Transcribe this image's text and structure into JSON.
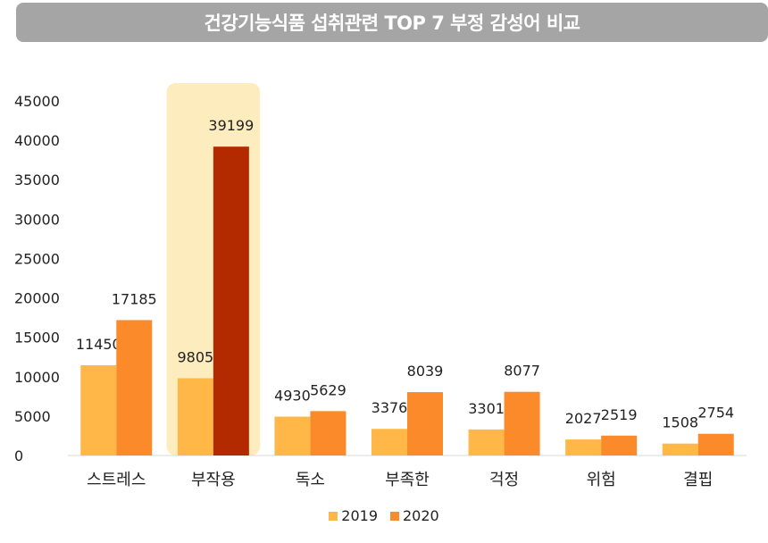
{
  "title": "건강기능식품 섭취관련 TOP 7 부정 감성어 비교",
  "chart_data": {
    "type": "bar",
    "categories": [
      "스트레스",
      "부작용",
      "독소",
      "부족한",
      "걱정",
      "위험",
      "결핍"
    ],
    "series": [
      {
        "name": "2019",
        "values": [
          11450,
          9805,
          4930,
          3376,
          3301,
          2027,
          1508
        ],
        "color": "#ffb847"
      },
      {
        "name": "2020",
        "values": [
          17185,
          39199,
          5629,
          8039,
          8077,
          2519,
          2754
        ],
        "color": "#fb8a2a"
      }
    ],
    "highlight": {
      "category": "부작용",
      "bar_color": "#b32a00",
      "band_color": "#fdedbe"
    },
    "ylim": [
      0,
      45000
    ],
    "yticks": [
      0,
      5000,
      10000,
      15000,
      20000,
      25000,
      30000,
      35000,
      40000,
      45000
    ],
    "legend_position": "bottom",
    "grid": false
  }
}
